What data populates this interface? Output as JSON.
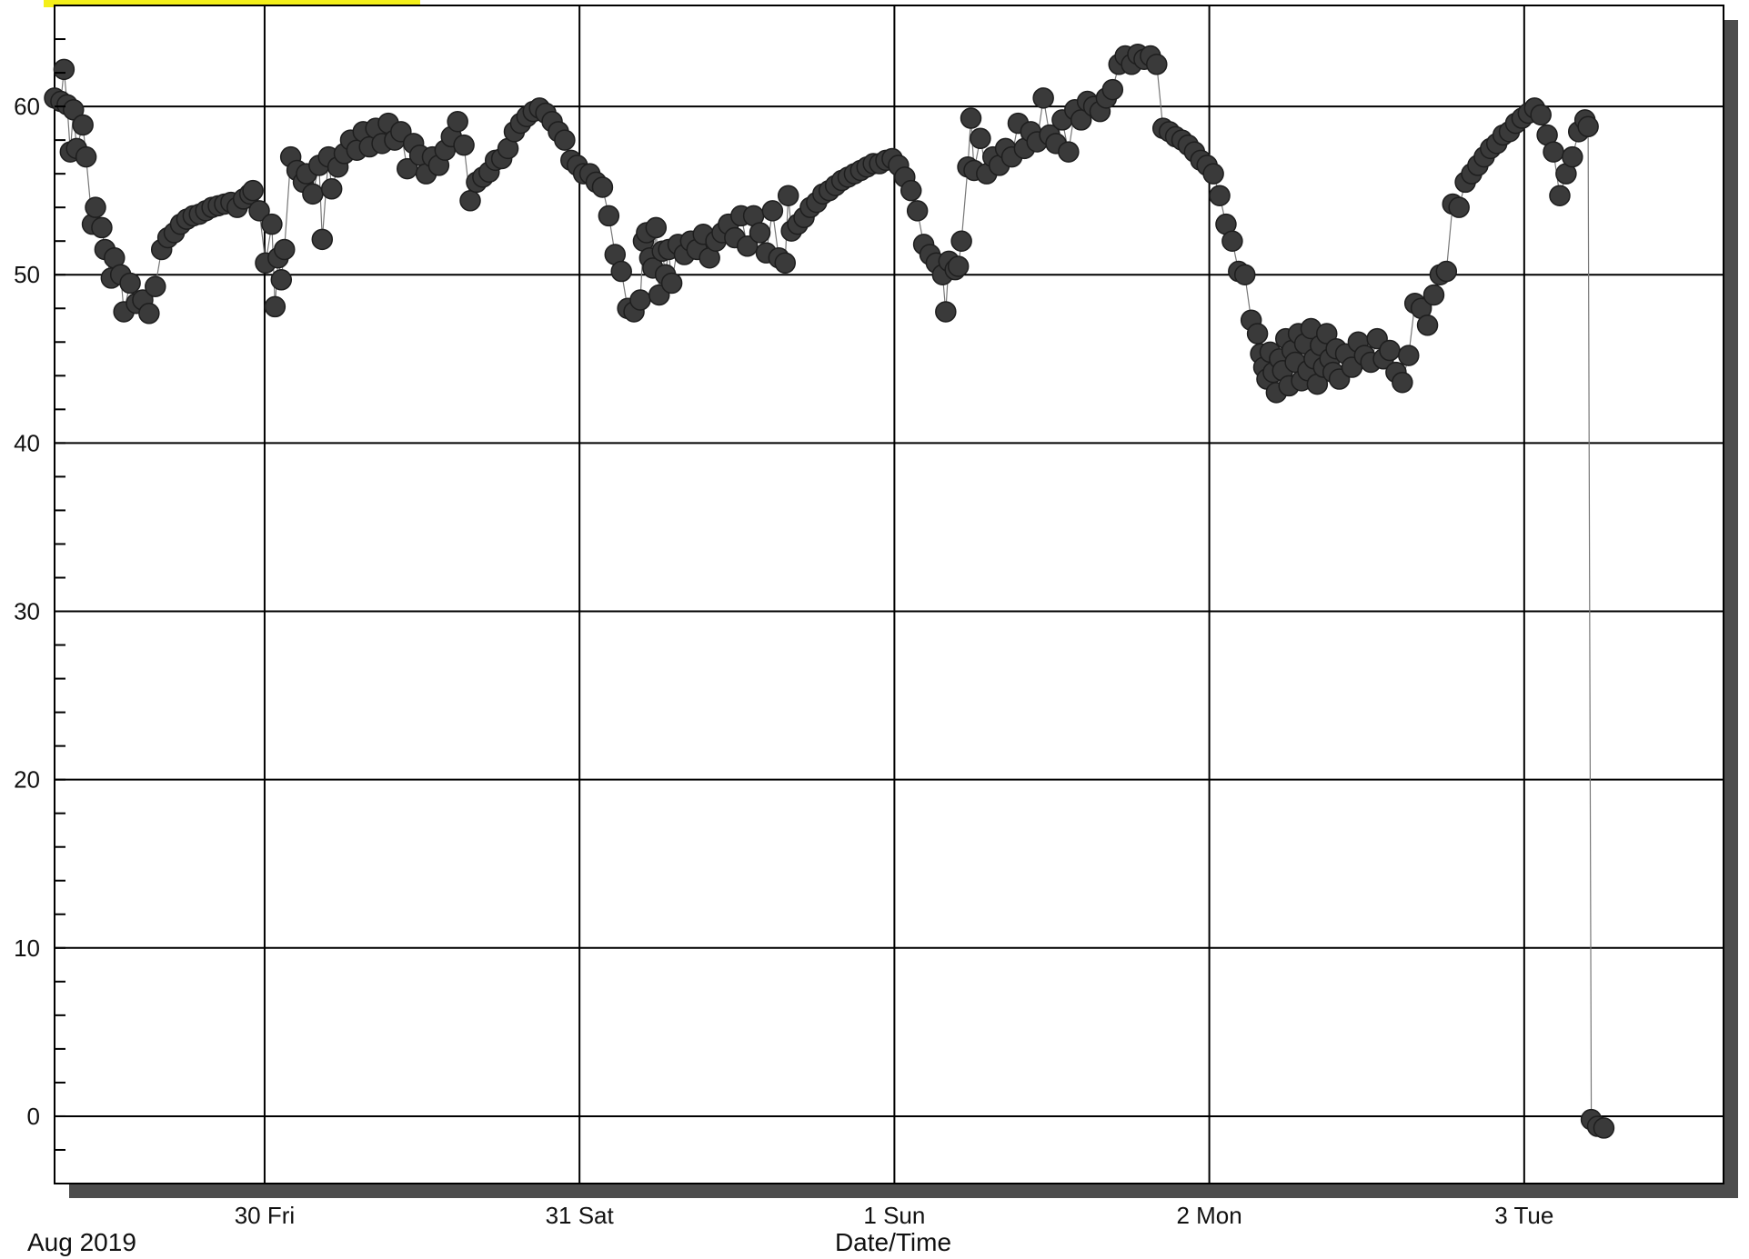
{
  "colors": {
    "background": "#ffffff",
    "grid": "#000000",
    "frame_shadow": "#4d4d4d",
    "marker": "#3a3a3a",
    "highlight": "#f4ef1a"
  },
  "chart_data": {
    "type": "line",
    "title": "",
    "xlabel": "Date/Time",
    "ylabel": "",
    "period_label": "Aug 2019",
    "x_unit": "days (Aug 29 2019 00:00 = 0)",
    "xlim": [
      0,
      5.3
    ],
    "ylim": [
      -4,
      66
    ],
    "grid": true,
    "markers": true,
    "x_ticks": [
      {
        "x": 0.667,
        "label": "30 Fri"
      },
      {
        "x": 1.667,
        "label": "31 Sat"
      },
      {
        "x": 2.667,
        "label": "1 Sun"
      },
      {
        "x": 3.667,
        "label": "2 Mon"
      },
      {
        "x": 4.667,
        "label": "3 Tue"
      }
    ],
    "y_ticks": [
      0,
      10,
      20,
      30,
      40,
      50,
      60
    ],
    "y_minor_step": 2,
    "series": [
      {
        "name": "",
        "points": [
          [
            0.0,
            60.5
          ],
          [
            0.02,
            60.3
          ],
          [
            0.03,
            62.2
          ],
          [
            0.04,
            60.1
          ],
          [
            0.05,
            57.3
          ],
          [
            0.06,
            59.8
          ],
          [
            0.07,
            57.5
          ],
          [
            0.09,
            58.9
          ],
          [
            0.1,
            57.0
          ],
          [
            0.12,
            53.0
          ],
          [
            0.13,
            54.0
          ],
          [
            0.15,
            52.8
          ],
          [
            0.16,
            51.5
          ],
          [
            0.18,
            49.8
          ],
          [
            0.19,
            51.0
          ],
          [
            0.21,
            50.0
          ],
          [
            0.22,
            47.8
          ],
          [
            0.24,
            49.5
          ],
          [
            0.26,
            48.3
          ],
          [
            0.28,
            48.5
          ],
          [
            0.3,
            47.7
          ],
          [
            0.32,
            49.3
          ],
          [
            0.34,
            51.5
          ],
          [
            0.36,
            52.2
          ],
          [
            0.38,
            52.5
          ],
          [
            0.4,
            53.0
          ],
          [
            0.42,
            53.3
          ],
          [
            0.44,
            53.5
          ],
          [
            0.46,
            53.6
          ],
          [
            0.48,
            53.8
          ],
          [
            0.5,
            54.0
          ],
          [
            0.52,
            54.1
          ],
          [
            0.54,
            54.2
          ],
          [
            0.56,
            54.3
          ],
          [
            0.58,
            54.0
          ],
          [
            0.6,
            54.5
          ],
          [
            0.62,
            54.8
          ],
          [
            0.63,
            55.0
          ],
          [
            0.65,
            53.8
          ],
          [
            0.67,
            50.7
          ],
          [
            0.69,
            53.0
          ],
          [
            0.7,
            48.1
          ],
          [
            0.71,
            51.0
          ],
          [
            0.72,
            49.7
          ],
          [
            0.73,
            51.5
          ],
          [
            0.75,
            57.0
          ],
          [
            0.77,
            56.2
          ],
          [
            0.79,
            55.5
          ],
          [
            0.8,
            56.0
          ],
          [
            0.82,
            54.8
          ],
          [
            0.84,
            56.5
          ],
          [
            0.85,
            52.1
          ],
          [
            0.87,
            57.0
          ],
          [
            0.88,
            55.1
          ],
          [
            0.9,
            56.4
          ],
          [
            0.92,
            57.2
          ],
          [
            0.94,
            58.0
          ],
          [
            0.96,
            57.4
          ],
          [
            0.98,
            58.5
          ],
          [
            1.0,
            57.6
          ],
          [
            1.02,
            58.7
          ],
          [
            1.04,
            57.8
          ],
          [
            1.06,
            59.0
          ],
          [
            1.08,
            58.0
          ],
          [
            1.1,
            58.5
          ],
          [
            1.12,
            56.3
          ],
          [
            1.14,
            57.8
          ],
          [
            1.16,
            57.1
          ],
          [
            1.18,
            56.0
          ],
          [
            1.2,
            57.0
          ],
          [
            1.22,
            56.5
          ],
          [
            1.24,
            57.4
          ],
          [
            1.26,
            58.2
          ],
          [
            1.28,
            59.1
          ],
          [
            1.3,
            57.7
          ],
          [
            1.32,
            54.4
          ],
          [
            1.34,
            55.5
          ],
          [
            1.36,
            55.8
          ],
          [
            1.38,
            56.1
          ],
          [
            1.4,
            56.8
          ],
          [
            1.42,
            56.9
          ],
          [
            1.44,
            57.5
          ],
          [
            1.46,
            58.5
          ],
          [
            1.48,
            59.0
          ],
          [
            1.5,
            59.4
          ],
          [
            1.52,
            59.7
          ],
          [
            1.54,
            59.9
          ],
          [
            1.56,
            59.6
          ],
          [
            1.58,
            59.1
          ],
          [
            1.6,
            58.5
          ],
          [
            1.62,
            58.0
          ],
          [
            1.64,
            56.8
          ],
          [
            1.66,
            56.5
          ],
          [
            1.68,
            56.0
          ],
          [
            1.7,
            56.0
          ],
          [
            1.72,
            55.5
          ],
          [
            1.74,
            55.2
          ],
          [
            1.76,
            53.5
          ],
          [
            1.78,
            51.2
          ],
          [
            1.8,
            50.2
          ],
          [
            1.82,
            48.0
          ],
          [
            1.84,
            47.8
          ],
          [
            1.86,
            48.5
          ],
          [
            1.87,
            52.0
          ],
          [
            1.88,
            52.5
          ],
          [
            1.89,
            51.0
          ],
          [
            1.9,
            50.4
          ],
          [
            1.91,
            52.8
          ],
          [
            1.92,
            48.8
          ],
          [
            1.93,
            51.4
          ],
          [
            1.94,
            50.0
          ],
          [
            1.95,
            51.5
          ],
          [
            1.96,
            49.5
          ],
          [
            1.98,
            51.8
          ],
          [
            2.0,
            51.2
          ],
          [
            2.02,
            52.0
          ],
          [
            2.04,
            51.5
          ],
          [
            2.06,
            52.4
          ],
          [
            2.08,
            51.0
          ],
          [
            2.1,
            52.0
          ],
          [
            2.12,
            52.5
          ],
          [
            2.14,
            53.0
          ],
          [
            2.16,
            52.2
          ],
          [
            2.18,
            53.5
          ],
          [
            2.2,
            51.7
          ],
          [
            2.22,
            53.5
          ],
          [
            2.24,
            52.5
          ],
          [
            2.26,
            51.3
          ],
          [
            2.28,
            53.8
          ],
          [
            2.3,
            51.0
          ],
          [
            2.32,
            50.7
          ],
          [
            2.33,
            54.7
          ],
          [
            2.34,
            52.6
          ],
          [
            2.36,
            53.0
          ],
          [
            2.38,
            53.4
          ],
          [
            2.4,
            54.0
          ],
          [
            2.42,
            54.3
          ],
          [
            2.44,
            54.8
          ],
          [
            2.46,
            55.0
          ],
          [
            2.48,
            55.3
          ],
          [
            2.5,
            55.6
          ],
          [
            2.52,
            55.8
          ],
          [
            2.54,
            56.0
          ],
          [
            2.56,
            56.2
          ],
          [
            2.58,
            56.4
          ],
          [
            2.6,
            56.6
          ],
          [
            2.62,
            56.6
          ],
          [
            2.64,
            56.8
          ],
          [
            2.66,
            56.9
          ],
          [
            2.68,
            56.5
          ],
          [
            2.7,
            55.8
          ],
          [
            2.72,
            55.0
          ],
          [
            2.74,
            53.8
          ],
          [
            2.76,
            51.8
          ],
          [
            2.78,
            51.2
          ],
          [
            2.8,
            50.7
          ],
          [
            2.82,
            50.0
          ],
          [
            2.83,
            47.8
          ],
          [
            2.84,
            50.8
          ],
          [
            2.86,
            50.3
          ],
          [
            2.87,
            50.5
          ],
          [
            2.88,
            52.0
          ],
          [
            2.9,
            56.4
          ],
          [
            2.91,
            59.3
          ],
          [
            2.92,
            56.2
          ],
          [
            2.94,
            58.1
          ],
          [
            2.96,
            56.0
          ],
          [
            2.98,
            57.0
          ],
          [
            3.0,
            56.5
          ],
          [
            3.02,
            57.5
          ],
          [
            3.04,
            57.0
          ],
          [
            3.06,
            59.0
          ],
          [
            3.08,
            57.5
          ],
          [
            3.1,
            58.5
          ],
          [
            3.12,
            57.9
          ],
          [
            3.14,
            60.5
          ],
          [
            3.16,
            58.3
          ],
          [
            3.18,
            57.8
          ],
          [
            3.2,
            59.2
          ],
          [
            3.22,
            57.3
          ],
          [
            3.24,
            59.8
          ],
          [
            3.26,
            59.2
          ],
          [
            3.28,
            60.3
          ],
          [
            3.3,
            60.0
          ],
          [
            3.32,
            59.7
          ],
          [
            3.34,
            60.5
          ],
          [
            3.36,
            61.0
          ],
          [
            3.38,
            62.5
          ],
          [
            3.4,
            63.0
          ],
          [
            3.42,
            62.5
          ],
          [
            3.44,
            63.1
          ],
          [
            3.46,
            62.8
          ],
          [
            3.48,
            63.0
          ],
          [
            3.5,
            62.5
          ],
          [
            3.52,
            58.7
          ],
          [
            3.54,
            58.5
          ],
          [
            3.56,
            58.2
          ],
          [
            3.58,
            58.0
          ],
          [
            3.6,
            57.7
          ],
          [
            3.62,
            57.3
          ],
          [
            3.64,
            56.8
          ],
          [
            3.66,
            56.5
          ],
          [
            3.68,
            56.0
          ],
          [
            3.7,
            54.7
          ],
          [
            3.72,
            53.0
          ],
          [
            3.74,
            52.0
          ],
          [
            3.76,
            50.2
          ],
          [
            3.78,
            50.0
          ],
          [
            3.8,
            47.3
          ],
          [
            3.82,
            46.5
          ],
          [
            3.83,
            45.3
          ],
          [
            3.84,
            44.5
          ],
          [
            3.85,
            43.8
          ],
          [
            3.86,
            45.4
          ],
          [
            3.87,
            44.2
          ],
          [
            3.88,
            43.0
          ],
          [
            3.89,
            45.0
          ],
          [
            3.9,
            44.3
          ],
          [
            3.91,
            46.2
          ],
          [
            3.92,
            43.4
          ],
          [
            3.93,
            45.5
          ],
          [
            3.94,
            44.8
          ],
          [
            3.95,
            46.5
          ],
          [
            3.96,
            43.7
          ],
          [
            3.97,
            45.9
          ],
          [
            3.98,
            44.3
          ],
          [
            3.99,
            46.8
          ],
          [
            4.0,
            45.0
          ],
          [
            4.01,
            43.5
          ],
          [
            4.02,
            45.8
          ],
          [
            4.03,
            44.5
          ],
          [
            4.04,
            46.5
          ],
          [
            4.05,
            45.0
          ],
          [
            4.06,
            44.2
          ],
          [
            4.07,
            45.6
          ],
          [
            4.08,
            43.8
          ],
          [
            4.1,
            45.3
          ],
          [
            4.12,
            44.5
          ],
          [
            4.14,
            46.0
          ],
          [
            4.16,
            45.2
          ],
          [
            4.18,
            44.8
          ],
          [
            4.2,
            46.2
          ],
          [
            4.22,
            45.0
          ],
          [
            4.24,
            45.5
          ],
          [
            4.26,
            44.2
          ],
          [
            4.28,
            43.6
          ],
          [
            4.3,
            45.2
          ],
          [
            4.32,
            48.3
          ],
          [
            4.34,
            48.0
          ],
          [
            4.36,
            47.0
          ],
          [
            4.38,
            48.8
          ],
          [
            4.4,
            50.0
          ],
          [
            4.42,
            50.2
          ],
          [
            4.44,
            54.2
          ],
          [
            4.46,
            54.0
          ],
          [
            4.48,
            55.5
          ],
          [
            4.5,
            56.0
          ],
          [
            4.52,
            56.5
          ],
          [
            4.54,
            57.0
          ],
          [
            4.56,
            57.5
          ],
          [
            4.58,
            57.8
          ],
          [
            4.6,
            58.3
          ],
          [
            4.62,
            58.5
          ],
          [
            4.64,
            59.0
          ],
          [
            4.66,
            59.3
          ],
          [
            4.68,
            59.6
          ],
          [
            4.7,
            59.9
          ],
          [
            4.72,
            59.5
          ],
          [
            4.74,
            58.3
          ],
          [
            4.76,
            57.3
          ],
          [
            4.78,
            54.7
          ],
          [
            4.8,
            56.0
          ],
          [
            4.82,
            57.0
          ],
          [
            4.84,
            58.5
          ],
          [
            4.86,
            59.2
          ],
          [
            4.87,
            58.8
          ],
          [
            4.88,
            -0.2
          ],
          [
            4.9,
            -0.6
          ],
          [
            4.92,
            -0.7
          ]
        ]
      }
    ]
  }
}
